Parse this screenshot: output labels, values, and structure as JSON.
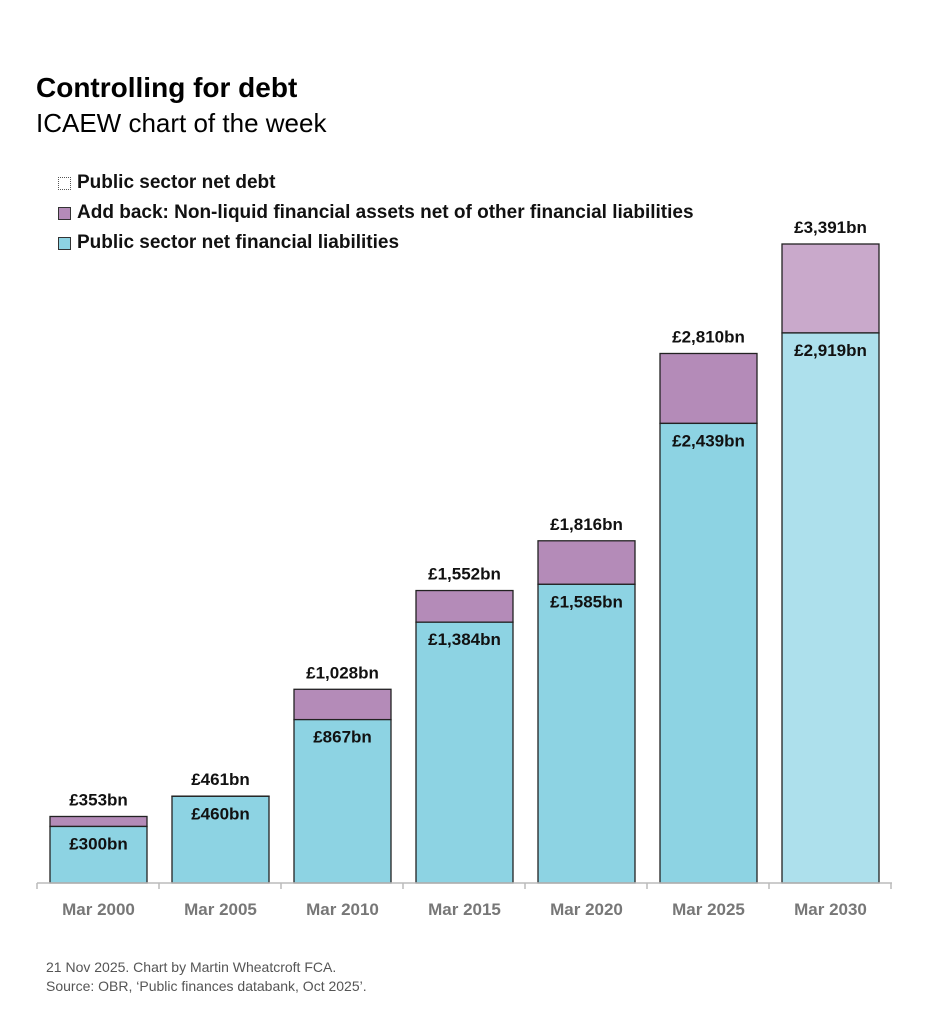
{
  "title": "Controlling for debt",
  "subtitle": "ICAEW chart of the week",
  "legend": [
    {
      "label": "Public sector net debt",
      "color": "#ffffff",
      "style": "dotted"
    },
    {
      "label": "Add back: Non-liquid financial assets net of other financial liabilities",
      "color": "#b48bb8"
    },
    {
      "label": "Public sector net financial liabilities",
      "color": "#8dd3e3"
    }
  ],
  "chart_data": {
    "type": "bar",
    "stacked": true,
    "title": "Controlling for debt",
    "subtitle": "ICAEW chart of the week",
    "categories": [
      "Mar 2000",
      "Mar 2005",
      "Mar 2010",
      "Mar 2015",
      "Mar 2020",
      "Mar 2025",
      "Mar 2030"
    ],
    "series": [
      {
        "name": "Public sector net financial liabilities",
        "values": [
          300,
          460,
          867,
          1384,
          1585,
          2439,
          2919
        ],
        "labels": [
          "£300bn",
          "£460bn",
          "£867bn",
          "£1,384bn",
          "£1,585bn",
          "£2,439bn",
          "£2,919bn"
        ],
        "color": "#8dd3e3",
        "forecast_color": "#ade0ec"
      },
      {
        "name": "Add back: Non-liquid financial assets net of other financial liabilities",
        "values": [
          53,
          1,
          161,
          168,
          231,
          371,
          472
        ],
        "color": "#b48bb8",
        "forecast_color": "#c9a9cb"
      }
    ],
    "totals": {
      "name": "Public sector net debt",
      "values": [
        353,
        461,
        1028,
        1552,
        1816,
        2810,
        3391
      ],
      "labels": [
        "£353bn",
        "£461bn",
        "£1,028bn",
        "£1,552bn",
        "£1,816bn",
        "£2,810bn",
        "£3,391bn"
      ]
    },
    "ylim": [
      0,
      3391
    ],
    "grid": false,
    "legend_position": "top-left"
  },
  "footer": {
    "line1": "21 Nov 2025.   Chart by Martin Wheatcroft FCA.",
    "line2": "Source: OBR, ‘Public finances databank, Oct 2025’."
  }
}
